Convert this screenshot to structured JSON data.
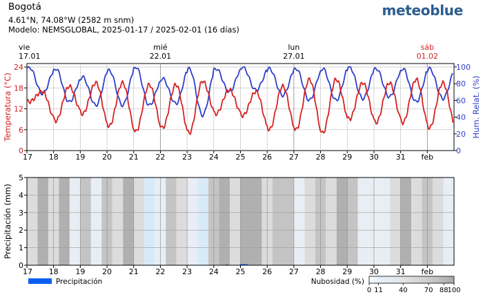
{
  "header": {
    "title": "Bogotá",
    "coords": "4.61°N, 74.08°W (2582 m snm)",
    "model": "Modelo: NEMSGLOBAL, 2025-01-17 / 2025-02-01 (16 días)",
    "brand": "meteoblue"
  },
  "colors": {
    "temperature": "#d62020",
    "humidity": "#2e3ec9",
    "precipitation": "#0b5ff0",
    "cloud_dark": "#b4b4b4",
    "cloud_light": "#d8eaf8",
    "grid": "#c8c8c8"
  },
  "chart_data": [
    {
      "type": "line",
      "day_labels": [
        {
          "weekday": "vie",
          "date": "17.01",
          "day": 17,
          "highlight": false
        },
        {
          "weekday": "mié",
          "date": "22.01",
          "day": 22,
          "highlight": false
        },
        {
          "weekday": "lun",
          "date": "27.01",
          "day": 27,
          "highlight": false
        },
        {
          "weekday": "sáb",
          "date": "01.02",
          "day": 32,
          "highlight": true
        }
      ],
      "x_ticks": [
        "17",
        "18",
        "19",
        "20",
        "21",
        "22",
        "23",
        "24",
        "25",
        "26",
        "27",
        "28",
        "29",
        "30",
        "31",
        "feb"
      ],
      "xlim": [
        17,
        33
      ],
      "ylabel_left": "Temperatura (°C)",
      "ylabel_right": "Hum. Relat. (%)",
      "left_ticks": [
        0,
        6,
        12,
        18,
        24
      ],
      "right_ticks": [
        0,
        20,
        40,
        60,
        80,
        100
      ],
      "ylim_left": [
        0,
        25
      ],
      "ylim_right": [
        0,
        104
      ],
      "grid": true,
      "series": [
        {
          "axis": "left",
          "color": "#d62020",
          "tmin": [
            14,
            8.5,
            10.5,
            7,
            5.5,
            6.5,
            5,
            10.5,
            10,
            6,
            6,
            5,
            9,
            8,
            8,
            6.5
          ],
          "tmax": [
            17,
            18.5,
            19.5,
            19.5,
            19,
            19,
            20,
            17.5,
            17,
            18.5,
            20.5,
            20.5,
            19.5,
            19.5,
            20.5,
            19.5
          ]
        },
        {
          "axis": "right",
          "color": "#2e3ec9",
          "hmin": [
            68,
            58,
            54,
            54,
            54,
            56,
            42,
            70,
            72,
            66,
            60,
            60,
            62,
            64,
            58,
            62
          ],
          "hmax": [
            100,
            98,
            88,
            96,
            100,
            86,
            98,
            98,
            100,
            98,
            98,
            98,
            100,
            98,
            98,
            98
          ]
        }
      ]
    },
    {
      "type": "bar",
      "ylabel": "Precipitación (mm)",
      "y_ticks": [
        0,
        1,
        2,
        3,
        4,
        5
      ],
      "ylim": [
        0,
        5
      ],
      "x_ticks": [
        "17",
        "18",
        "19",
        "20",
        "21",
        "22",
        "23",
        "24",
        "25",
        "26",
        "27",
        "28",
        "29",
        "30",
        "31",
        "feb"
      ],
      "xlim": [
        17,
        33
      ],
      "legend": "Precipitación",
      "cloud_legend_title": "Nubosidad (%)",
      "cloud_legend_ticks": [
        "0",
        "11",
        "40",
        "70",
        "88",
        "100"
      ],
      "cloud_cover": [
        [
          17.0,
          55
        ],
        [
          17.4,
          90
        ],
        [
          17.8,
          45
        ],
        [
          18.2,
          95
        ],
        [
          18.6,
          30
        ],
        [
          19.0,
          70
        ],
        [
          19.4,
          20
        ],
        [
          19.8,
          85
        ],
        [
          20.2,
          40
        ],
        [
          20.6,
          90
        ],
        [
          21.0,
          60
        ],
        [
          21.4,
          10
        ],
        [
          21.8,
          15
        ],
        [
          22.2,
          70
        ],
        [
          22.6,
          50
        ],
        [
          23.0,
          20
        ],
        [
          23.4,
          10
        ],
        [
          23.8,
          75
        ],
        [
          24.2,
          90
        ],
        [
          24.6,
          60
        ],
        [
          25.0,
          95
        ],
        [
          25.4,
          95
        ],
        [
          25.8,
          60
        ],
        [
          26.2,
          85
        ],
        [
          26.6,
          70
        ],
        [
          27.0,
          30
        ],
        [
          27.4,
          55
        ],
        [
          27.8,
          75
        ],
        [
          28.2,
          45
        ],
        [
          28.6,
          90
        ],
        [
          29.0,
          70
        ],
        [
          29.4,
          35
        ],
        [
          29.8,
          20
        ],
        [
          30.2,
          15
        ],
        [
          30.6,
          50
        ],
        [
          31.0,
          90
        ],
        [
          31.4,
          40
        ],
        [
          31.8,
          80
        ],
        [
          32.2,
          50
        ],
        [
          32.6,
          20
        ]
      ],
      "precipitation": [
        [
          24.5,
          0.02
        ],
        [
          25.0,
          0.03
        ],
        [
          25.05,
          0.06
        ],
        [
          25.1,
          0.07
        ],
        [
          25.15,
          0.06
        ],
        [
          25.2,
          0.05
        ],
        [
          25.25,
          0.04
        ]
      ]
    }
  ]
}
